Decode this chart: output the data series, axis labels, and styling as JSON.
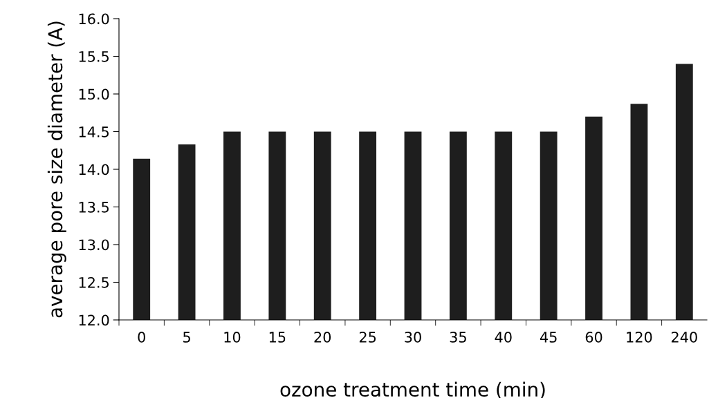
{
  "chart_data": {
    "type": "bar",
    "categories": [
      "0",
      "5",
      "10",
      "15",
      "20",
      "25",
      "30",
      "35",
      "40",
      "45",
      "60",
      "120",
      "240"
    ],
    "values": [
      14.14,
      14.33,
      14.5,
      14.5,
      14.5,
      14.5,
      14.5,
      14.5,
      14.5,
      14.5,
      14.7,
      14.87,
      15.4
    ],
    "color": "#1e1e1e",
    "xlabel": "ozone treatment time (min)",
    "ylabel": "average pore size diameter (A)",
    "ylim": [
      12.0,
      16.0
    ],
    "yticks": [
      {
        "value": 12.0,
        "label": "12.0"
      },
      {
        "value": 12.5,
        "label": "12.5"
      },
      {
        "value": 13.0,
        "label": "13.0"
      },
      {
        "value": 13.5,
        "label": "13.5"
      },
      {
        "value": 14.0,
        "label": "14.0"
      },
      {
        "value": 14.5,
        "label": "14.5"
      },
      {
        "value": 15.0,
        "label": "15.0"
      },
      {
        "value": 15.5,
        "label": "15.5"
      },
      {
        "value": 16.0,
        "label": "16.0"
      }
    ],
    "grid": false,
    "legend": false
  }
}
